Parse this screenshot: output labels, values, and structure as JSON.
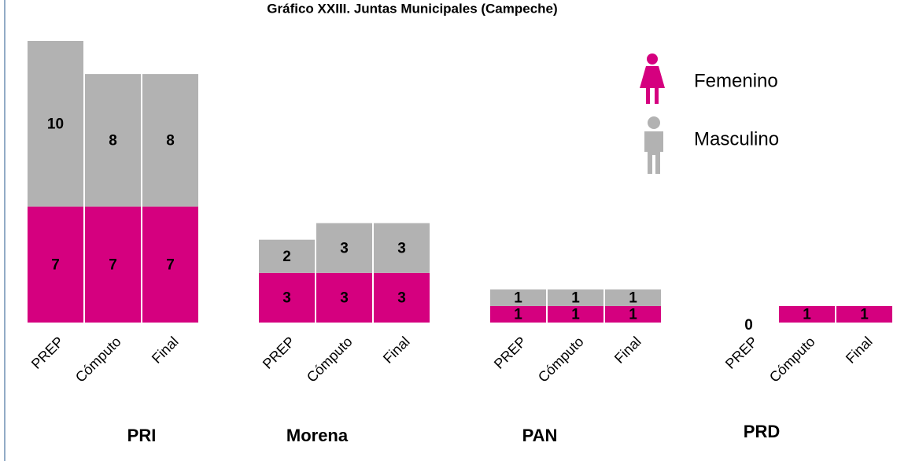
{
  "chart_data": {
    "type": "stacked-bar",
    "title": "Gráfico XXIII. Juntas Municipales (Campeche)",
    "groups": [
      "PRI",
      "Morena",
      "PAN",
      "PRD"
    ],
    "categories": [
      "PREP",
      "Cómputo",
      "Final",
      "PREP",
      "Cómputo",
      "Final",
      "PREP",
      "Cómputo",
      "Final",
      "PREP",
      "Cómputo",
      "Final"
    ],
    "series": [
      {
        "name": "Femenino",
        "color": "#d5007f",
        "values": [
          7,
          7,
          7,
          3,
          3,
          3,
          1,
          1,
          1,
          0,
          1,
          1
        ]
      },
      {
        "name": "Masculino",
        "color": "#b2b2b2",
        "values": [
          10,
          8,
          8,
          2,
          3,
          3,
          1,
          1,
          1,
          null,
          null,
          null
        ]
      }
    ]
  }
}
